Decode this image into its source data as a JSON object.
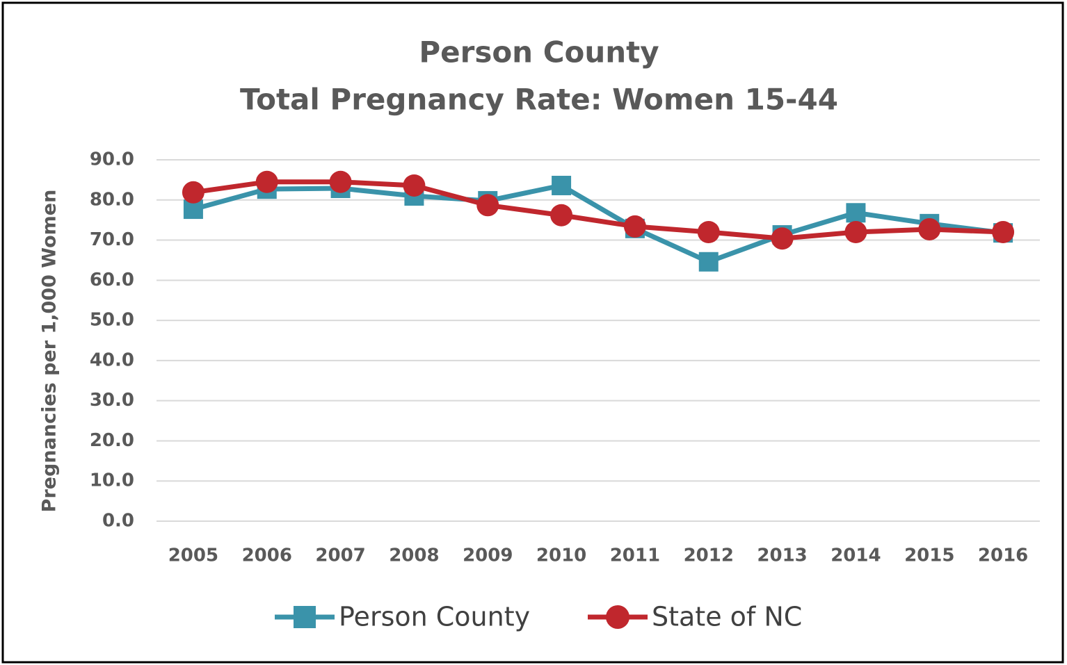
{
  "chart_data": {
    "type": "line",
    "title": "Person County",
    "subtitle": "Total Pregnancy Rate: Women 15-44",
    "y_label": "Pregnancies per 1,000 Women",
    "categories": [
      "2005",
      "2006",
      "2007",
      "2008",
      "2009",
      "2010",
      "2011",
      "2012",
      "2013",
      "2014",
      "2015",
      "2016"
    ],
    "series": [
      {
        "name": "Person County",
        "color": "#3a93aa",
        "marker": "square",
        "values": [
          77.7,
          82.7,
          82.9,
          81.0,
          79.8,
          83.6,
          72.9,
          64.6,
          71.3,
          76.8,
          74.1,
          71.8
        ]
      },
      {
        "name": "State of NC",
        "color": "#c0272d",
        "marker": "circle",
        "values": [
          81.9,
          84.5,
          84.5,
          83.6,
          78.7,
          76.2,
          73.4,
          72.0,
          70.4,
          72.0,
          72.7,
          72.0
        ]
      }
    ],
    "ylim": [
      0,
      90
    ],
    "yticks": [
      {
        "value": 0,
        "label": "0.0"
      },
      {
        "value": 10,
        "label": "10.0"
      },
      {
        "value": 20,
        "label": "20.0"
      },
      {
        "value": 30,
        "label": "30.0"
      },
      {
        "value": 40,
        "label": "40.0"
      },
      {
        "value": 50,
        "label": "50.0"
      },
      {
        "value": 60,
        "label": "60.0"
      },
      {
        "value": 70,
        "label": "70.0"
      },
      {
        "value": 80,
        "label": "80.0"
      },
      {
        "value": 90,
        "label": "90.0"
      }
    ],
    "grid": true,
    "legend": "bottom"
  }
}
